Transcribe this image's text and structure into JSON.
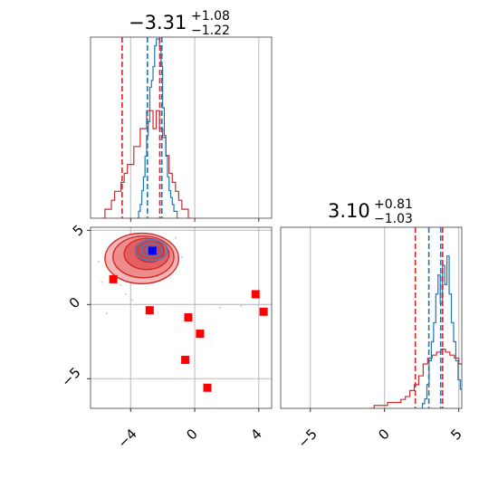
{
  "chart_data": {
    "type": "corner",
    "parameters": [
      {
        "title_main": "−3.31",
        "title_sup": "+1.08",
        "title_sub": "−1.22"
      },
      {
        "title_main": "3.10",
        "title_sup": "+0.81",
        "title_sub": "−1.03"
      }
    ],
    "x_ticks": {
      "param0": [
        "−4",
        "0",
        "4"
      ],
      "param1": [
        "−5",
        "0",
        "5"
      ]
    },
    "y_ticks": {
      "param1": [
        "5",
        "0",
        "−5"
      ]
    },
    "colors": {
      "red": "#d62728",
      "blue": "#1f77b4",
      "grid": "#b0b0b0"
    },
    "p0_xlim": [
      -6.5,
      4.8
    ],
    "p1_lim": [
      -7,
      5.2
    ],
    "hist_p0": {
      "quantiles_red": [
        -4.53,
        -2.18
      ],
      "quantiles_blue": [
        -2.95,
        -2.05
      ],
      "red_hist": {
        "start": -5.8,
        "step": 0.2,
        "values": [
          0,
          1,
          1,
          2,
          3,
          3,
          4,
          5,
          6,
          6,
          8,
          8,
          10,
          10,
          12,
          12,
          10,
          12,
          10,
          9,
          7,
          5,
          4,
          3,
          2,
          1,
          1,
          0
        ]
      },
      "blue_hist": {
        "start": -3.6,
        "step": 0.1,
        "values": [
          0,
          1,
          2,
          4,
          6,
          9,
          12,
          14,
          19,
          20,
          22,
          25,
          26,
          26,
          25,
          22,
          16,
          12,
          9,
          6,
          4,
          3,
          2,
          1,
          1,
          0
        ]
      }
    },
    "hist_p1": {
      "quantiles_red": [
        2.07,
        3.91
      ],
      "quantiles_blue": [
        2.98,
        3.78
      ],
      "red_hist": {
        "start": -1.0,
        "step": 0.3,
        "values": [
          0,
          1,
          1,
          1,
          2,
          2,
          2,
          3,
          4,
          6,
          8,
          11,
          15,
          17,
          18,
          19,
          20,
          19,
          18,
          17,
          15,
          12,
          6,
          3,
          1,
          0
        ]
      },
      "blue_hist": {
        "start": 2.4,
        "step": 0.15,
        "values": [
          0,
          1,
          2,
          5,
          10,
          14,
          18,
          24,
          28,
          22,
          30,
          26,
          32,
          24,
          18,
          14,
          10,
          6,
          4,
          2,
          1,
          0
        ]
      }
    },
    "scatter_2d": {
      "red_points": [
        [
          -5.08,
          1.7
        ],
        [
          -2.81,
          -0.39
        ],
        [
          -0.4,
          -0.87
        ],
        [
          0.33,
          -1.97
        ],
        [
          -0.59,
          -3.73
        ],
        [
          0.79,
          -5.61
        ],
        [
          3.8,
          0.69
        ],
        [
          4.3,
          -0.49
        ]
      ],
      "blue_points": [
        [
          -2.64,
          3.62
        ]
      ],
      "red_contours": [
        {
          "cx": -3.3,
          "cy": 3.1,
          "rx": 2.3,
          "ry": 1.7,
          "level": 1
        },
        {
          "cx": -3.2,
          "cy": 3.2,
          "rx": 1.9,
          "ry": 1.4,
          "level": 2
        },
        {
          "cx": -3.0,
          "cy": 3.4,
          "rx": 1.4,
          "ry": 1.05,
          "level": 3
        },
        {
          "cx": -2.8,
          "cy": 3.6,
          "rx": 0.9,
          "ry": 0.75,
          "level": 4
        }
      ],
      "blue_contours": [
        {
          "cx": -2.7,
          "cy": 3.65,
          "rx": 1.0,
          "ry": 0.7
        },
        {
          "cx": -2.7,
          "cy": 3.65,
          "rx": 0.65,
          "ry": 0.45
        },
        {
          "cx": -2.7,
          "cy": 3.65,
          "rx": 0.35,
          "ry": 0.25
        }
      ],
      "background_samples": [
        [
          -5.5,
          -0.6
        ],
        [
          -5.8,
          1.5
        ],
        [
          -4.6,
          1.3
        ],
        [
          -4.3,
          0.7
        ],
        [
          -6.0,
          2.9
        ],
        [
          -3.9,
          0.3
        ],
        [
          -1.2,
          4.5
        ],
        [
          -0.8,
          3.2
        ],
        [
          1.6,
          -0.2
        ],
        [
          2.9,
          -0.1
        ],
        [
          -4.9,
          4.1
        ]
      ]
    }
  }
}
